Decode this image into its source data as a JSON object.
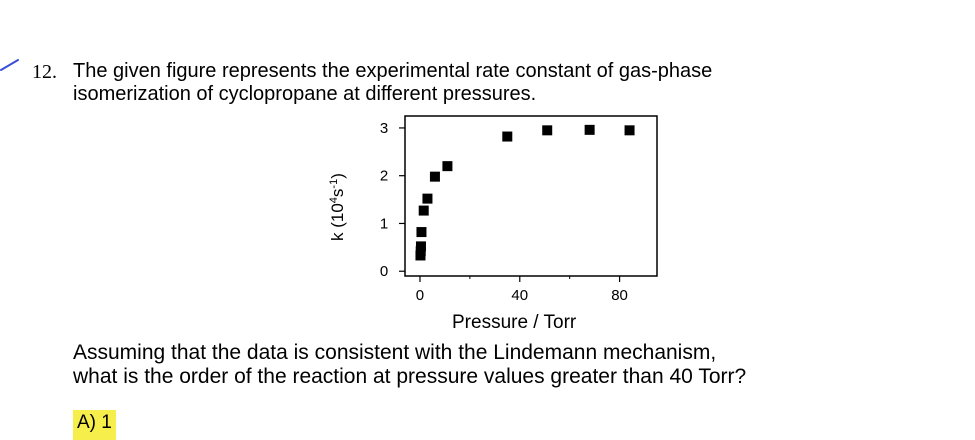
{
  "question": {
    "number": "12.",
    "lines": [
      "The given figure represents the experimental rate constant of gas-phase",
      "isomerization of cyclopropane at different pressures."
    ],
    "followup_lines": [
      "Assuming that the data is consistent with the Lindemann mechanism,",
      "what is the order of the reaction at pressure values greater than 40 Torr?"
    ],
    "option_a": "A)   1"
  },
  "colors": {
    "annotation_mark": "#3a4fd8",
    "highlight": "#f6ee4a",
    "marker": "#000000"
  },
  "chart_data": {
    "type": "scatter",
    "xlabel": "Pressure / Torr",
    "ylabel_parts": [
      "k  (10",
      "4",
      "s",
      "-1",
      ")"
    ],
    "xlim": [
      -6,
      95
    ],
    "ylim": [
      -0.1,
      3.25
    ],
    "xticks": [
      0,
      40,
      80
    ],
    "yticks": [
      0,
      1,
      2,
      3
    ],
    "marker": "square",
    "grid": false,
    "series": [
      {
        "x": [
          0.2,
          0.3,
          0.4,
          0.6,
          1.5,
          3,
          6,
          11,
          35,
          51,
          68,
          84
        ],
        "y": [
          0.33,
          0.42,
          0.52,
          0.82,
          1.27,
          1.52,
          1.98,
          2.2,
          2.82,
          2.95,
          2.96,
          2.95
        ]
      }
    ]
  }
}
